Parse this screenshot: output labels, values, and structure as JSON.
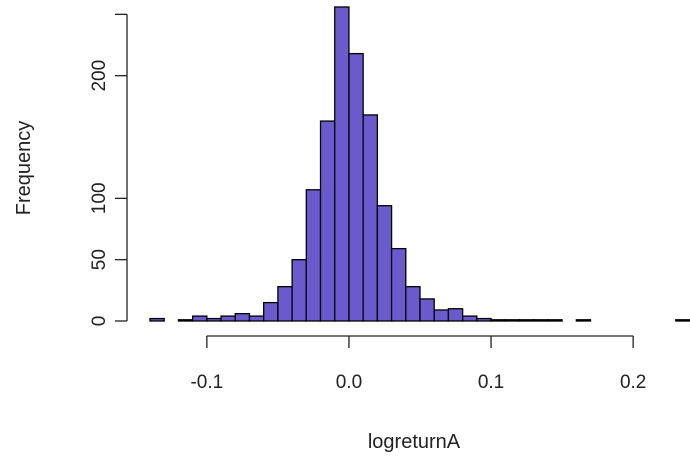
{
  "chart_data": {
    "type": "bar",
    "title": "",
    "xlabel": "logreturnA",
    "ylabel": "Frequency",
    "bin_width": 0.01,
    "bins": [
      {
        "x0": -0.14,
        "x1": -0.13,
        "count": 2
      },
      {
        "x0": -0.13,
        "x1": -0.12,
        "count": 0
      },
      {
        "x0": -0.12,
        "x1": -0.11,
        "count": 1
      },
      {
        "x0": -0.11,
        "x1": -0.1,
        "count": 4
      },
      {
        "x0": -0.1,
        "x1": -0.09,
        "count": 2
      },
      {
        "x0": -0.09,
        "x1": -0.08,
        "count": 4
      },
      {
        "x0": -0.08,
        "x1": -0.07,
        "count": 6
      },
      {
        "x0": -0.07,
        "x1": -0.06,
        "count": 4
      },
      {
        "x0": -0.06,
        "x1": -0.05,
        "count": 15
      },
      {
        "x0": -0.05,
        "x1": -0.04,
        "count": 28
      },
      {
        "x0": -0.04,
        "x1": -0.03,
        "count": 50
      },
      {
        "x0": -0.03,
        "x1": -0.02,
        "count": 107
      },
      {
        "x0": -0.02,
        "x1": -0.01,
        "count": 163
      },
      {
        "x0": -0.01,
        "x1": 0.0,
        "count": 256
      },
      {
        "x0": 0.0,
        "x1": 0.01,
        "count": 218
      },
      {
        "x0": 0.01,
        "x1": 0.02,
        "count": 168
      },
      {
        "x0": 0.02,
        "x1": 0.03,
        "count": 94
      },
      {
        "x0": 0.03,
        "x1": 0.04,
        "count": 59
      },
      {
        "x0": 0.04,
        "x1": 0.05,
        "count": 28
      },
      {
        "x0": 0.05,
        "x1": 0.06,
        "count": 18
      },
      {
        "x0": 0.06,
        "x1": 0.07,
        "count": 9
      },
      {
        "x0": 0.07,
        "x1": 0.08,
        "count": 10
      },
      {
        "x0": 0.08,
        "x1": 0.09,
        "count": 4
      },
      {
        "x0": 0.09,
        "x1": 0.1,
        "count": 2
      },
      {
        "x0": 0.1,
        "x1": 0.11,
        "count": 1
      },
      {
        "x0": 0.11,
        "x1": 0.12,
        "count": 1
      },
      {
        "x0": 0.12,
        "x1": 0.13,
        "count": 1
      },
      {
        "x0": 0.13,
        "x1": 0.14,
        "count": 1
      },
      {
        "x0": 0.14,
        "x1": 0.15,
        "count": 1
      },
      {
        "x0": 0.15,
        "x1": 0.16,
        "count": 0
      },
      {
        "x0": 0.16,
        "x1": 0.17,
        "count": 1
      },
      {
        "x0": 0.17,
        "x1": 0.18,
        "count": 0
      },
      {
        "x0": 0.18,
        "x1": 0.19,
        "count": 0
      },
      {
        "x0": 0.19,
        "x1": 0.2,
        "count": 0
      },
      {
        "x0": 0.2,
        "x1": 0.21,
        "count": 0
      },
      {
        "x0": 0.21,
        "x1": 0.22,
        "count": 0
      },
      {
        "x0": 0.22,
        "x1": 0.23,
        "count": 0
      },
      {
        "x0": 0.23,
        "x1": 0.24,
        "count": 1
      }
    ],
    "xlim": [
      -0.14,
      0.24
    ],
    "ylim": [
      0,
      256
    ],
    "x_ticks": [
      {
        "value": -0.1,
        "label": "-0.1"
      },
      {
        "value": 0.0,
        "label": "0.0"
      },
      {
        "value": 0.1,
        "label": "0.1"
      },
      {
        "value": 0.2,
        "label": "0.2"
      }
    ],
    "y_ticks": [
      {
        "value": 0,
        "label": "0"
      },
      {
        "value": 50,
        "label": "50"
      },
      {
        "value": 100,
        "label": "100"
      },
      {
        "value": 200,
        "label": "200"
      }
    ],
    "y_axis_top_value": 250,
    "grid": false,
    "legend": "none",
    "bar_color": "#6a5acd",
    "bar_edge_color": "#000000"
  }
}
